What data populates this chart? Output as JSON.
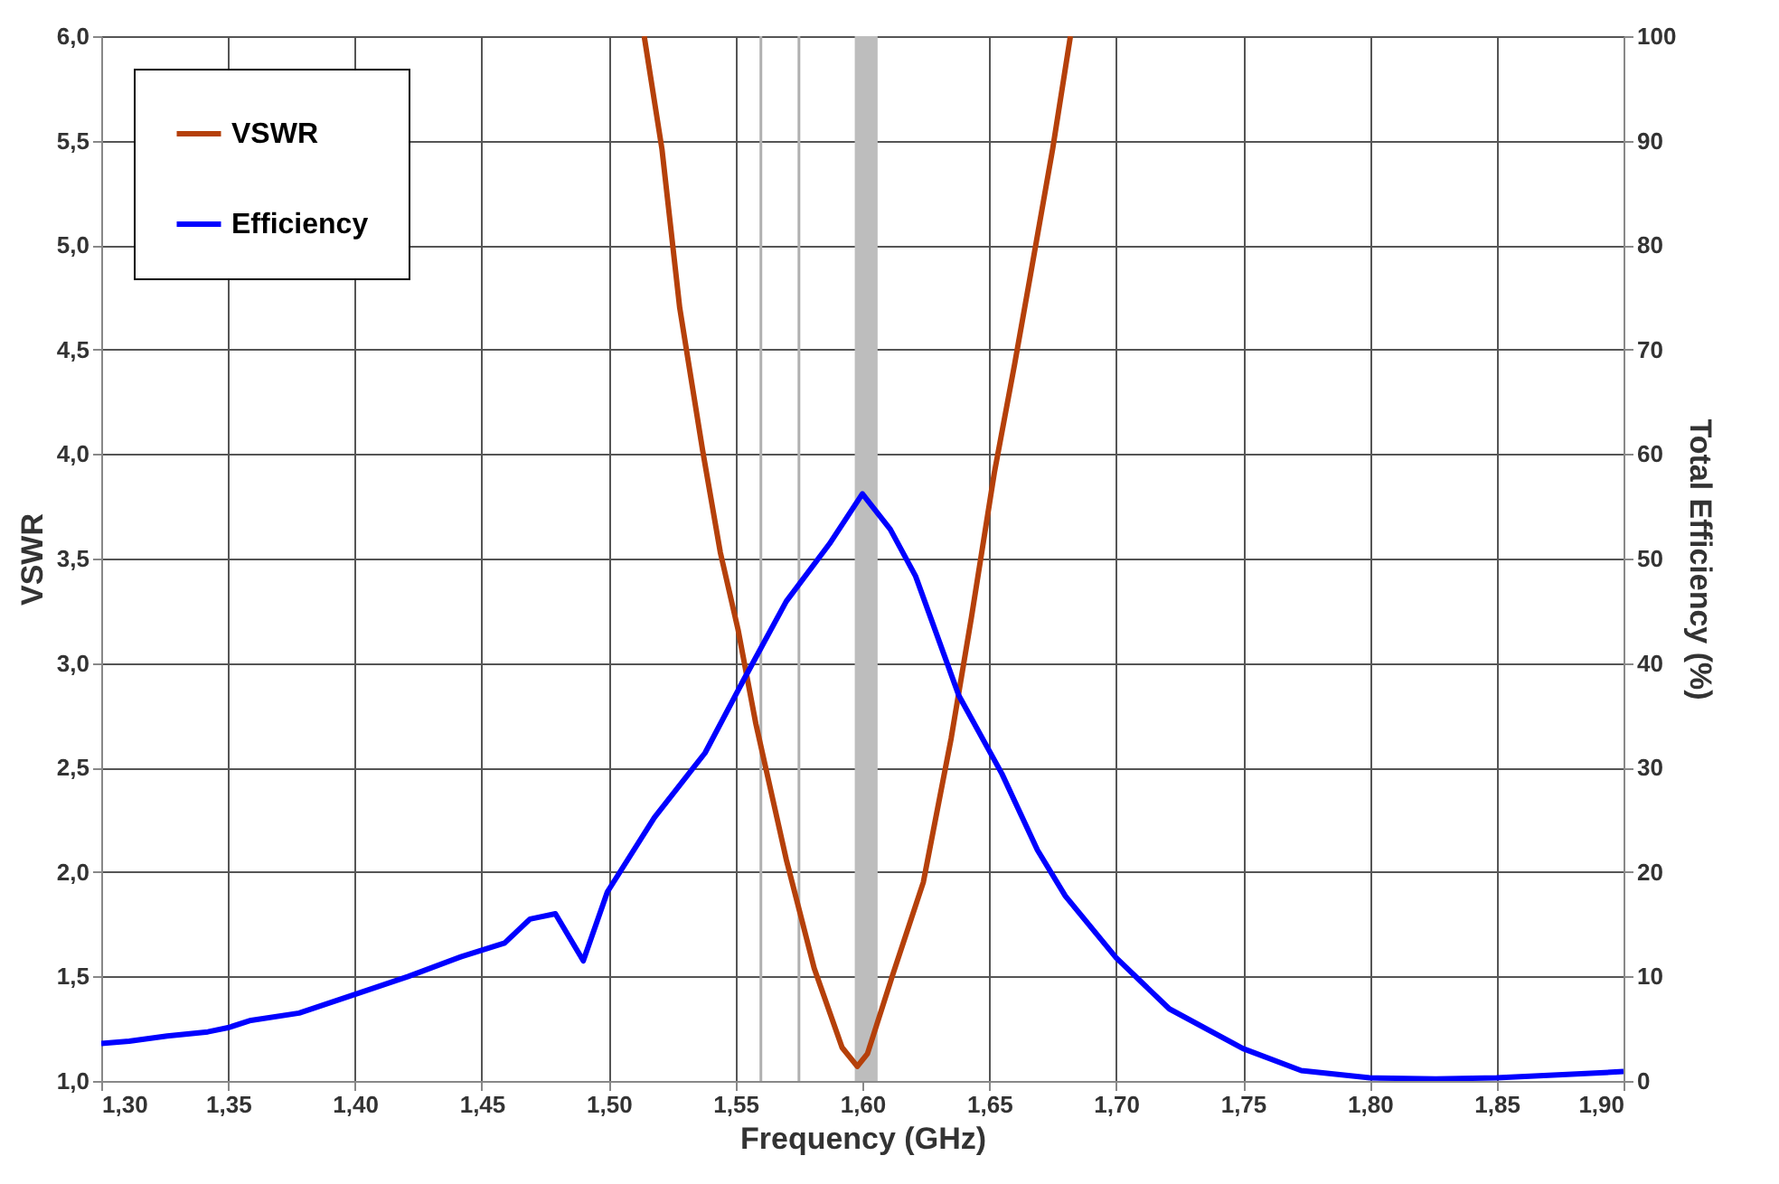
{
  "chart_data": {
    "type": "line",
    "xlabel": "Frequency (GHz)",
    "ylabel": "VSWR",
    "y2label": "Total Efficiency (%)",
    "xlim": [
      1.3,
      1.9
    ],
    "xticks": [
      {
        "value": 1.3,
        "label": "1,30"
      },
      {
        "value": 1.35,
        "label": "1,35"
      },
      {
        "value": 1.4,
        "label": "1,40"
      },
      {
        "value": 1.45,
        "label": "1,45"
      },
      {
        "value": 1.5,
        "label": "1,50"
      },
      {
        "value": 1.55,
        "label": "1,55"
      },
      {
        "value": 1.6,
        "label": "1,60"
      },
      {
        "value": 1.65,
        "label": "1,65"
      },
      {
        "value": 1.7,
        "label": "1,70"
      },
      {
        "value": 1.75,
        "label": "1,75"
      },
      {
        "value": 1.8,
        "label": "1,80"
      },
      {
        "value": 1.85,
        "label": "1,85"
      },
      {
        "value": 1.9,
        "label": "1,90"
      }
    ],
    "ylim": [
      1.0,
      6.0
    ],
    "yticks": [
      {
        "value": 1.0,
        "label": "1,0"
      },
      {
        "value": 1.5,
        "label": "1,5"
      },
      {
        "value": 2.0,
        "label": "2,0"
      },
      {
        "value": 2.5,
        "label": "2,5"
      },
      {
        "value": 3.0,
        "label": "3,0"
      },
      {
        "value": 3.5,
        "label": "3,5"
      },
      {
        "value": 4.0,
        "label": "4,0"
      },
      {
        "value": 4.5,
        "label": "4,5"
      },
      {
        "value": 5.0,
        "label": "5,0"
      },
      {
        "value": 5.5,
        "label": "5,5"
      },
      {
        "value": 6.0,
        "label": "6,0"
      }
    ],
    "y2lim": [
      0,
      100
    ],
    "y2ticks": [
      0,
      10,
      20,
      30,
      40,
      50,
      60,
      70,
      80,
      90,
      100
    ],
    "grid": true,
    "legend": "top left",
    "marker": "none",
    "line_style": "solid",
    "ref_lines": [
      {
        "axis": "x",
        "value": 1.56,
        "color": "#b0b0b0"
      },
      {
        "axis": "x",
        "value": 1.575,
        "color": "#b0b0b0"
      }
    ],
    "bands": [
      {
        "axis": "x",
        "from": 1.597,
        "to": 1.606,
        "color": "#bdbdbd"
      }
    ],
    "series": [
      {
        "name": "VSWR",
        "color": "#b5400a",
        "x": [
          1.514,
          1.521,
          1.528,
          1.537,
          1.544,
          1.551,
          1.558,
          1.57,
          1.581,
          1.592,
          1.598,
          1.602,
          1.612,
          1.624,
          1.635,
          1.643,
          1.652,
          1.66,
          1.666,
          1.675,
          1.682
        ],
        "values": [
          6.0,
          5.46,
          4.7,
          4.02,
          3.53,
          3.16,
          2.71,
          2.06,
          1.54,
          1.16,
          1.07,
          1.13,
          1.51,
          1.95,
          2.64,
          3.22,
          3.91,
          4.43,
          4.84,
          5.46,
          6.0
        ]
      },
      {
        "name": "Efficiency",
        "color": "#0000ff",
        "axis": "y2",
        "x": [
          1.3,
          1.311,
          1.326,
          1.342,
          1.35,
          1.359,
          1.378,
          1.399,
          1.421,
          1.442,
          1.459,
          1.469,
          1.479,
          1.49,
          1.4995,
          1.518,
          1.538,
          1.553,
          1.57,
          1.587,
          1.6,
          1.611,
          1.621,
          1.638,
          1.655,
          1.669,
          1.68,
          1.7,
          1.721,
          1.75,
          1.773,
          1.8,
          1.826,
          1.85,
          1.876,
          1.9
        ],
        "values": [
          3.6,
          3.8,
          4.3,
          4.7,
          5.1,
          5.8,
          6.5,
          8.2,
          10.0,
          11.9,
          13.2,
          15.5,
          16.0,
          11.5,
          18.1,
          25.2,
          31.4,
          38.3,
          45.9,
          51.4,
          56.2,
          52.8,
          48.3,
          36.9,
          29.4,
          22.1,
          17.7,
          11.8,
          6.9,
          3.1,
          1.0,
          0.3,
          0.2,
          0.3,
          0.6,
          0.9
        ]
      }
    ]
  }
}
